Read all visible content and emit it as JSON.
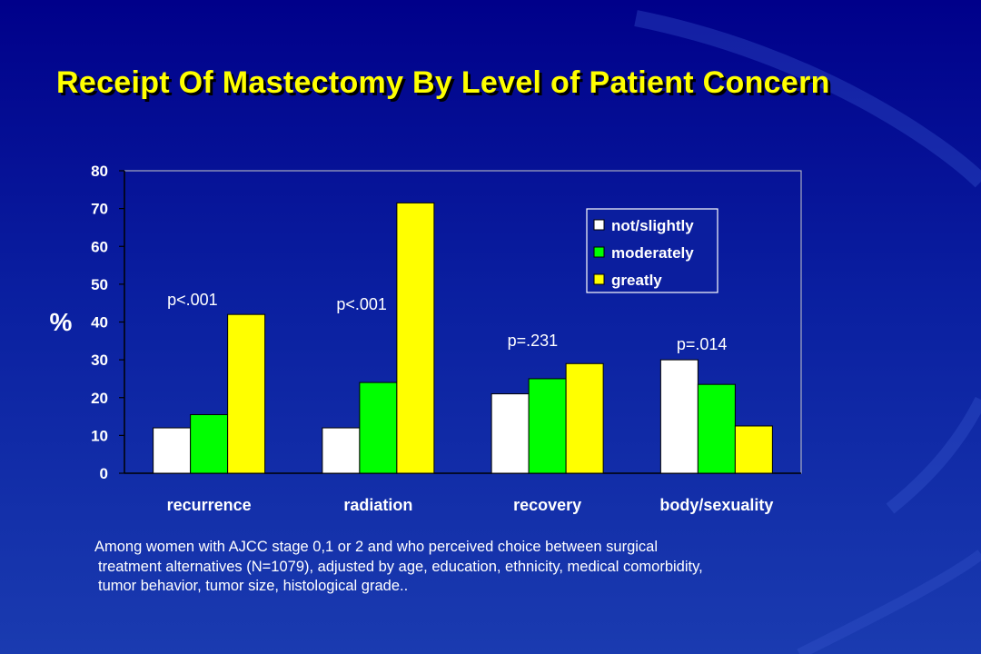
{
  "title": "Receipt Of Mastectomy By Level of Patient Concern",
  "footnote": {
    "line1": "Among women with AJCC stage 0,1 or 2 and who perceived choice between surgical",
    "line2": "treatment alternatives (N=1079), adjusted by age, education, ethnicity, medical comorbidity,",
    "line3": "tumor behavior, tumor size, histological grade.."
  },
  "chart_data": {
    "type": "bar",
    "title": "",
    "xlabel": "",
    "ylabel": "%",
    "ylim": [
      0,
      80
    ],
    "yticks": [
      0,
      10,
      20,
      30,
      40,
      50,
      60,
      70,
      80
    ],
    "grid": false,
    "legend_position": "top-right",
    "categories": [
      "recurrence",
      "radiation",
      "recovery",
      "body/sexuality"
    ],
    "series": [
      {
        "name": "not/slightly",
        "color": "#ffffff",
        "values": [
          12,
          12,
          21,
          30
        ]
      },
      {
        "name": "moderately",
        "color": "#00ff00",
        "values": [
          15.5,
          24,
          25,
          23.5
        ]
      },
      {
        "name": "greatly",
        "color": "#ffff00",
        "values": [
          42,
          71.5,
          29,
          12.5
        ]
      }
    ],
    "annotations": [
      {
        "category": "recurrence",
        "text": "p<.001"
      },
      {
        "category": "radiation",
        "text": "p<.001"
      },
      {
        "category": "recovery",
        "text": "p=.231"
      },
      {
        "category": "body/sexuality",
        "text": "p=.014"
      }
    ]
  },
  "colors": {
    "background_top": "#00008a",
    "background_bottom": "#1a3bb0",
    "title": "#ffff00",
    "text": "#ffffff"
  }
}
